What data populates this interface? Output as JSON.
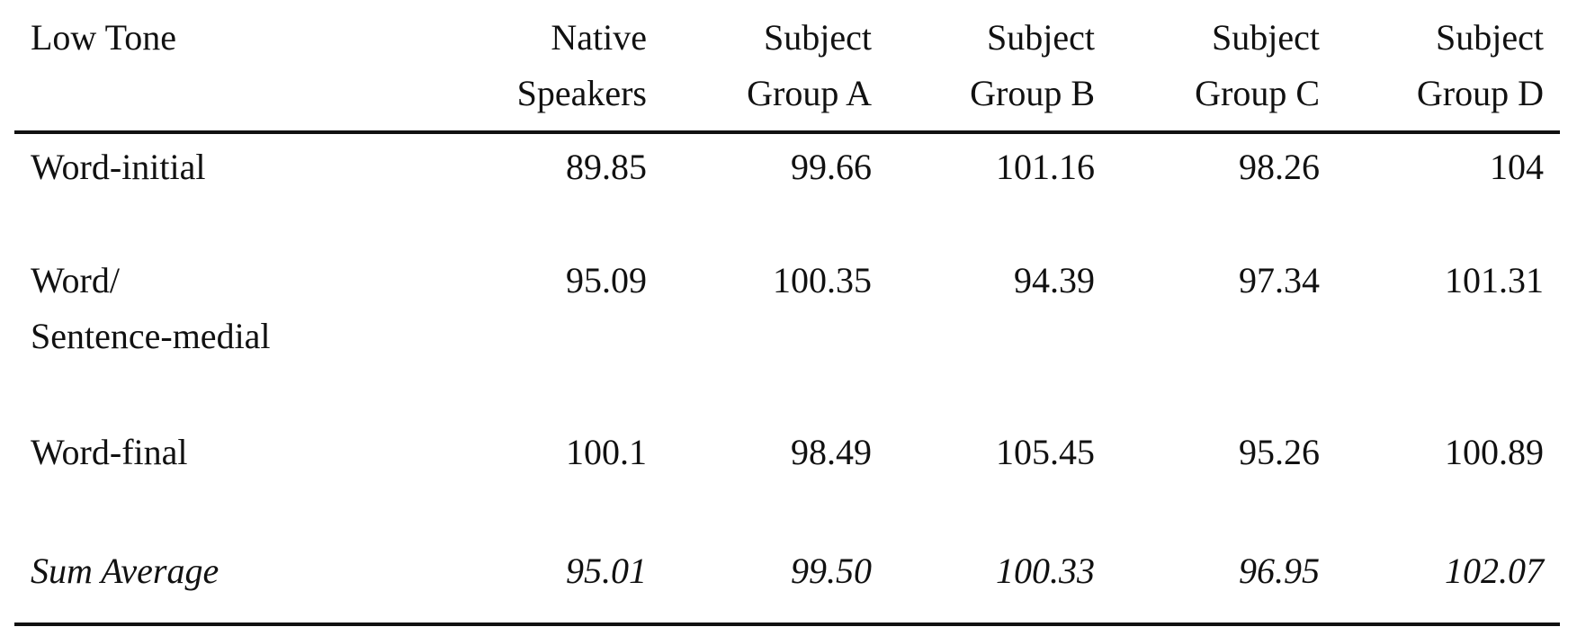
{
  "table": {
    "header": [
      "Low Tone",
      "Native\nSpeakers",
      "Subject\nGroup A",
      "Subject\nGroup B",
      "Subject\nGroup C",
      "Subject\nGroup D"
    ],
    "rows": [
      [
        "Word-initial",
        "89.85",
        "99.66",
        "101.16",
        "98.26",
        "104"
      ],
      [
        "Word/\nSentence-medial",
        "95.09",
        "100.35",
        "94.39",
        "97.34",
        "101.31"
      ],
      [
        "Word-final",
        "100.1",
        "98.49",
        "105.45",
        "95.26",
        "100.89"
      ],
      [
        "Sum Average",
        "95.01",
        "99.50",
        "100.33",
        "96.95",
        "102.07"
      ]
    ]
  }
}
